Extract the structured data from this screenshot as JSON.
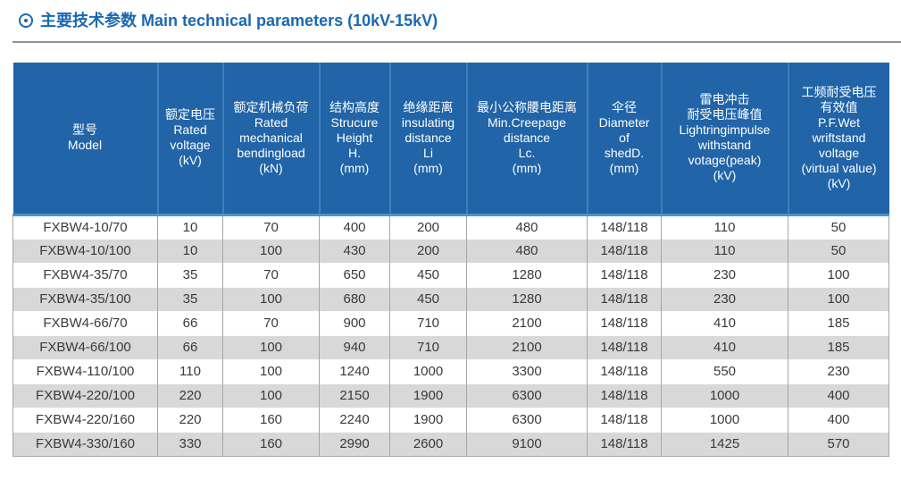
{
  "page": {
    "title": "主要技术参数 Main technical parameters (10kV-15kV)"
  },
  "table": {
    "columns": [
      {
        "name": "model",
        "lines": [
          "型号",
          "Model"
        ]
      },
      {
        "name": "rated-voltage",
        "lines": [
          "额定电压",
          "Rated",
          "voltage",
          "(kV)"
        ]
      },
      {
        "name": "rated-mechanical-bendingload",
        "lines": [
          "额定机械负荷",
          "Rated",
          "mechanical",
          "bendingload",
          "(kN)"
        ]
      },
      {
        "name": "structure-height",
        "lines": [
          "结构高度",
          "Strucure",
          "Height",
          "H.",
          "(mm)"
        ]
      },
      {
        "name": "insulating-distance",
        "lines": [
          "绝缘距离",
          "insulating",
          "distance",
          "Li",
          "(mm)"
        ]
      },
      {
        "name": "min-creepage-distance",
        "lines": [
          "最小公称腰电距离",
          "Min.Creepage",
          "distance",
          "Lc.",
          "(mm)"
        ]
      },
      {
        "name": "shed-diameter",
        "lines": [
          "伞径",
          "Diameter",
          "of",
          "shedD.",
          "(mm)"
        ]
      },
      {
        "name": "lightning-impulse-withstand",
        "lines": [
          "雷电冲击",
          "耐受电压峰值",
          "Lightringimpulse",
          "withstand",
          "votage(peak)",
          "(kV)"
        ]
      },
      {
        "name": "power-frequency-withstand",
        "lines": [
          "工频耐受电压",
          "有效值",
          "P.F.Wet",
          "wriftstand",
          "voltage",
          "(virtual value)",
          "(kV)"
        ]
      }
    ],
    "rows": [
      [
        "FXBW4-10/70",
        "10",
        "70",
        "400",
        "200",
        "480",
        "148/118",
        "110",
        "50"
      ],
      [
        "FXBW4-10/100",
        "10",
        "100",
        "430",
        "200",
        "480",
        "148/118",
        "110",
        "50"
      ],
      [
        "FXBW4-35/70",
        "35",
        "70",
        "650",
        "450",
        "1280",
        "148/118",
        "230",
        "100"
      ],
      [
        "FXBW4-35/100",
        "35",
        "100",
        "680",
        "450",
        "1280",
        "148/118",
        "230",
        "100"
      ],
      [
        "FXBW4-66/70",
        "66",
        "70",
        "900",
        "710",
        "2100",
        "148/118",
        "410",
        "185"
      ],
      [
        "FXBW4-66/100",
        "66",
        "100",
        "940",
        "710",
        "2100",
        "148/118",
        "410",
        "185"
      ],
      [
        "FXBW4-110/100",
        "110",
        "100",
        "1240",
        "1000",
        "3300",
        "148/118",
        "550",
        "230"
      ],
      [
        "FXBW4-220/100",
        "220",
        "100",
        "2150",
        "1900",
        "6300",
        "148/118",
        "1000",
        "400"
      ],
      [
        "FXBW4-220/160",
        "220",
        "160",
        "2240",
        "1900",
        "6300",
        "148/118",
        "1000",
        "400"
      ],
      [
        "FXBW4-330/160",
        "330",
        "160",
        "2990",
        "2600",
        "9100",
        "148/118",
        "1425",
        "570"
      ]
    ]
  },
  "colors": {
    "title_blue": "#1a69b1",
    "header_background": "#2164a8",
    "header_divider_blue": "#4796ce",
    "row_alt_gray": "#d8d8d8",
    "rule_gray": "#929292"
  }
}
